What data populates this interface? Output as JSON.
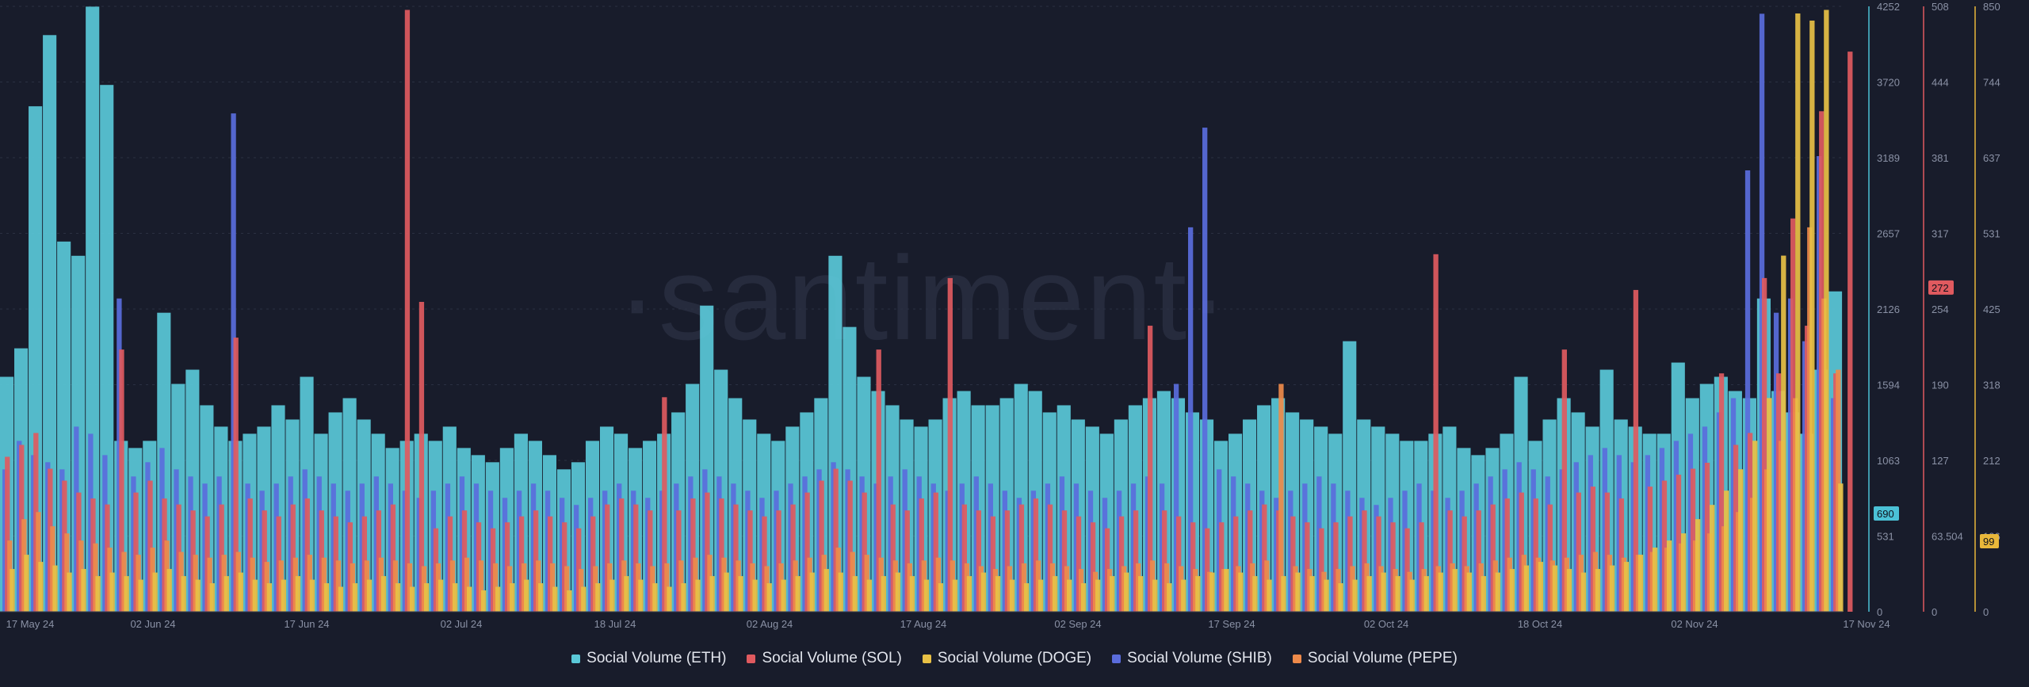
{
  "watermark": "·santiment·",
  "colors": {
    "background": "#181c2b",
    "grid": "#2a3042",
    "tick_text": "#8a91a5"
  },
  "chart_data": {
    "type": "bar",
    "x_ticks": [
      "17 May 24",
      "02 Jun 24",
      "17 Jun 24",
      "02 Jul 24",
      "18 Jul 24",
      "02 Aug 24",
      "17 Aug 24",
      "02 Sep 24",
      "17 Sep 24",
      "02 Oct 24",
      "18 Oct 24",
      "02 Nov 24",
      "17 Nov 24"
    ],
    "x_range": [
      "2024-05-15",
      "2024-11-17"
    ],
    "axes": [
      {
        "id": "eth",
        "color": "#4bc1d6",
        "ticks": [
          "4252",
          "3720",
          "3189",
          "2657",
          "2126",
          "1594",
          "1063",
          "531",
          "0"
        ],
        "range": [
          0,
          4252
        ],
        "badge": "690"
      },
      {
        "id": "sol",
        "color": "#e05a5f",
        "ticks": [
          "508",
          "444",
          "381",
          "317",
          "254",
          "190",
          "127",
          "63.504",
          "0"
        ],
        "range": [
          0,
          508
        ],
        "badge": "272"
      },
      {
        "id": "doge",
        "color": "#e8b73a",
        "ticks": [
          "850",
          "744",
          "637",
          "531",
          "425",
          "318",
          "212",
          "106",
          "0"
        ],
        "range": [
          0,
          850
        ],
        "badge": "99"
      }
    ],
    "series": [
      {
        "name": "Social Volume (ETH)",
        "color": "#5ac8d8",
        "axis": "eth",
        "values": [
          1650,
          1850,
          1550,
          1600,
          1520,
          1480,
          1300,
          1250,
          1200,
          1150,
          1200,
          1350,
          1600,
          1700,
          1450,
          1300,
          1200,
          1250,
          1300,
          1450,
          1350,
          1300,
          1250,
          1400,
          1500,
          1350,
          1250,
          1150,
          1200,
          1250,
          1200,
          1300,
          1150,
          1100,
          1050,
          1150,
          1250,
          1200,
          1100,
          1000,
          1050,
          1200,
          1300,
          1250,
          1150,
          1200,
          1250,
          1400,
          1600,
          2150,
          1700,
          1500,
          1350,
          1250,
          1200,
          1300,
          1400,
          1500,
          2500,
          2000,
          1650,
          1550,
          1450,
          1350,
          1300,
          1350,
          1500,
          1550,
          1450,
          1450,
          1500,
          1600,
          1550,
          1400,
          1450,
          1350,
          1300,
          1250,
          1350,
          1450,
          1500,
          1550,
          1500,
          1400,
          1350,
          1200,
          1250,
          1350,
          1450,
          1500,
          1400,
          1350,
          1300,
          1250,
          1300,
          1350,
          1300,
          1250,
          1200,
          1200,
          1250,
          1300,
          1150,
          1100,
          1150,
          1250,
          1300,
          1200,
          1350,
          1500,
          1400,
          1300,
          1350,
          1350,
          1300,
          1250,
          1250,
          1400,
          1500,
          1600,
          1650,
          1550,
          1500,
          1700,
          1550,
          1400,
          1250,
          1700,
          2300
        ],
        "spikes": [
          [
            2,
            3550
          ],
          [
            3,
            4050
          ],
          [
            5,
            2500
          ],
          [
            6,
            4250
          ],
          [
            7,
            3700
          ],
          [
            4,
            2600
          ],
          [
            11,
            2100
          ],
          [
            21,
            1650
          ],
          [
            94,
            1900
          ],
          [
            128,
            2250
          ],
          [
            123,
            2200
          ],
          [
            106,
            1650
          ],
          [
            112,
            1700
          ],
          [
            117,
            1750
          ]
        ]
      },
      {
        "name": "Social Volume (SOL)",
        "color": "#e05a5f",
        "axis": "sol",
        "values": [
          130,
          140,
          150,
          120,
          110,
          100,
          95,
          90,
          85,
          100,
          110,
          95,
          90,
          85,
          80,
          90,
          100,
          95,
          85,
          80,
          90,
          95,
          85,
          80,
          75,
          80,
          85,
          90,
          80,
          75,
          70,
          80,
          85,
          75,
          70,
          75,
          80,
          85,
          80,
          75,
          70,
          80,
          90,
          95,
          90,
          85,
          80,
          85,
          95,
          100,
          95,
          90,
          85,
          80,
          85,
          90,
          100,
          110,
          120,
          110,
          100,
          95,
          90,
          85,
          95,
          100,
          95,
          90,
          85,
          80,
          85,
          90,
          95,
          90,
          85,
          80,
          75,
          70,
          80,
          85,
          90,
          85,
          80,
          75,
          70,
          75,
          80,
          85,
          90,
          85,
          80,
          75,
          70,
          75,
          80,
          85,
          80,
          75,
          70,
          75,
          80,
          85,
          80,
          85,
          90,
          95,
          100,
          95,
          90,
          95,
          100,
          105,
          100,
          95,
          100,
          105,
          110,
          115,
          120,
          125,
          130,
          140,
          150,
          170,
          200,
          230,
          240,
          250,
          200
        ],
        "spikes": [
          [
            28,
            505
          ],
          [
            29,
            260
          ],
          [
            66,
            280
          ],
          [
            61,
            220
          ],
          [
            80,
            240
          ],
          [
            100,
            300
          ],
          [
            114,
            270
          ],
          [
            120,
            200
          ],
          [
            123,
            280
          ],
          [
            125,
            330
          ],
          [
            127,
            420
          ],
          [
            129,
            470
          ],
          [
            8,
            220
          ],
          [
            16,
            230
          ],
          [
            46,
            180
          ],
          [
            109,
            220
          ]
        ]
      },
      {
        "name": "Social Volume (DOGE)",
        "color": "#e8c045",
        "axis": "doge",
        "values": [
          60,
          80,
          70,
          65,
          55,
          60,
          50,
          55,
          50,
          45,
          55,
          60,
          50,
          45,
          40,
          50,
          55,
          45,
          40,
          45,
          50,
          45,
          40,
          35,
          40,
          45,
          50,
          40,
          35,
          40,
          45,
          40,
          35,
          30,
          35,
          40,
          45,
          40,
          35,
          30,
          35,
          40,
          45,
          50,
          45,
          40,
          35,
          40,
          45,
          50,
          55,
          50,
          45,
          40,
          45,
          50,
          55,
          60,
          55,
          50,
          45,
          50,
          55,
          50,
          45,
          40,
          45,
          50,
          55,
          50,
          45,
          40,
          45,
          50,
          45,
          40,
          45,
          50,
          55,
          50,
          45,
          40,
          45,
          50,
          55,
          60,
          55,
          50,
          45,
          50,
          55,
          50,
          45,
          40,
          45,
          50,
          55,
          50,
          45,
          50,
          55,
          60,
          55,
          50,
          55,
          60,
          65,
          70,
          65,
          60,
          55,
          60,
          65,
          70,
          80,
          90,
          100,
          110,
          130,
          150,
          170,
          200,
          240,
          300,
          350,
          400,
          300,
          220,
          180
        ],
        "spikes": [
          [
            125,
            840
          ],
          [
            126,
            830
          ],
          [
            127,
            845
          ],
          [
            124,
            500
          ]
        ]
      },
      {
        "name": "Social Volume (SHIB)",
        "color": "#5a6cdc",
        "axis": "eth",
        "values": [
          1000,
          1200,
          1100,
          1050,
          1000,
          1300,
          1250,
          1100,
          1000,
          950,
          1050,
          1150,
          1000,
          950,
          900,
          950,
          1000,
          900,
          850,
          900,
          950,
          1000,
          950,
          900,
          850,
          900,
          950,
          900,
          850,
          800,
          850,
          900,
          950,
          900,
          850,
          800,
          850,
          900,
          850,
          800,
          750,
          800,
          850,
          900,
          850,
          800,
          850,
          900,
          950,
          1000,
          950,
          900,
          850,
          800,
          850,
          900,
          950,
          1000,
          1050,
          1000,
          950,
          900,
          950,
          1000,
          950,
          900,
          850,
          900,
          950,
          900,
          850,
          800,
          850,
          900,
          950,
          900,
          850,
          800,
          850,
          900,
          950,
          900,
          1600,
          1700,
          1100,
          1000,
          950,
          900,
          850,
          800,
          850,
          900,
          950,
          900,
          850,
          800,
          750,
          800,
          850,
          900,
          850,
          800,
          850,
          900,
          950,
          1000,
          1050,
          1000,
          950,
          1000,
          1050,
          1100,
          1150,
          1100,
          1050,
          1100,
          1150,
          1200,
          1250,
          1300,
          1400,
          1500,
          1700,
          1900,
          2100,
          2200,
          1900,
          1700,
          1500
        ],
        "spikes": [
          [
            16,
            3500
          ],
          [
            84,
            3400
          ],
          [
            83,
            2700
          ],
          [
            8,
            2200
          ],
          [
            123,
            4200
          ],
          [
            122,
            3100
          ],
          [
            127,
            3200
          ]
        ]
      },
      {
        "name": "Social Volume (PEPE)",
        "color": "#ee8a4a",
        "axis": "eth",
        "values": [
          500,
          650,
          700,
          600,
          550,
          500,
          480,
          450,
          420,
          400,
          450,
          500,
          420,
          400,
          380,
          400,
          420,
          380,
          350,
          360,
          380,
          400,
          380,
          360,
          340,
          360,
          380,
          360,
          340,
          320,
          340,
          360,
          380,
          360,
          340,
          320,
          340,
          360,
          340,
          320,
          300,
          320,
          340,
          360,
          340,
          320,
          340,
          360,
          380,
          400,
          380,
          360,
          340,
          320,
          340,
          360,
          380,
          400,
          450,
          420,
          400,
          380,
          360,
          340,
          360,
          380,
          360,
          340,
          320,
          300,
          320,
          340,
          360,
          340,
          320,
          300,
          280,
          300,
          320,
          340,
          360,
          340,
          320,
          300,
          280,
          300,
          320,
          340,
          360,
          340,
          320,
          300,
          280,
          300,
          320,
          340,
          320,
          300,
          280,
          300,
          320,
          340,
          320,
          340,
          360,
          380,
          400,
          380,
          360,
          380,
          400,
          420,
          400,
          380,
          400,
          420,
          450,
          480,
          500,
          550,
          600,
          700,
          800,
          1000,
          1200,
          1500,
          1700,
          1400,
          1100
        ],
        "spikes": [
          [
            126,
            2700
          ],
          [
            127,
            2200
          ],
          [
            89,
            1600
          ],
          [
            128,
            1700
          ]
        ]
      }
    ],
    "legend": [
      "Social Volume (ETH)",
      "Social Volume (SOL)",
      "Social Volume (DOGE)",
      "Social Volume (SHIB)",
      "Social Volume (PEPE)"
    ]
  }
}
